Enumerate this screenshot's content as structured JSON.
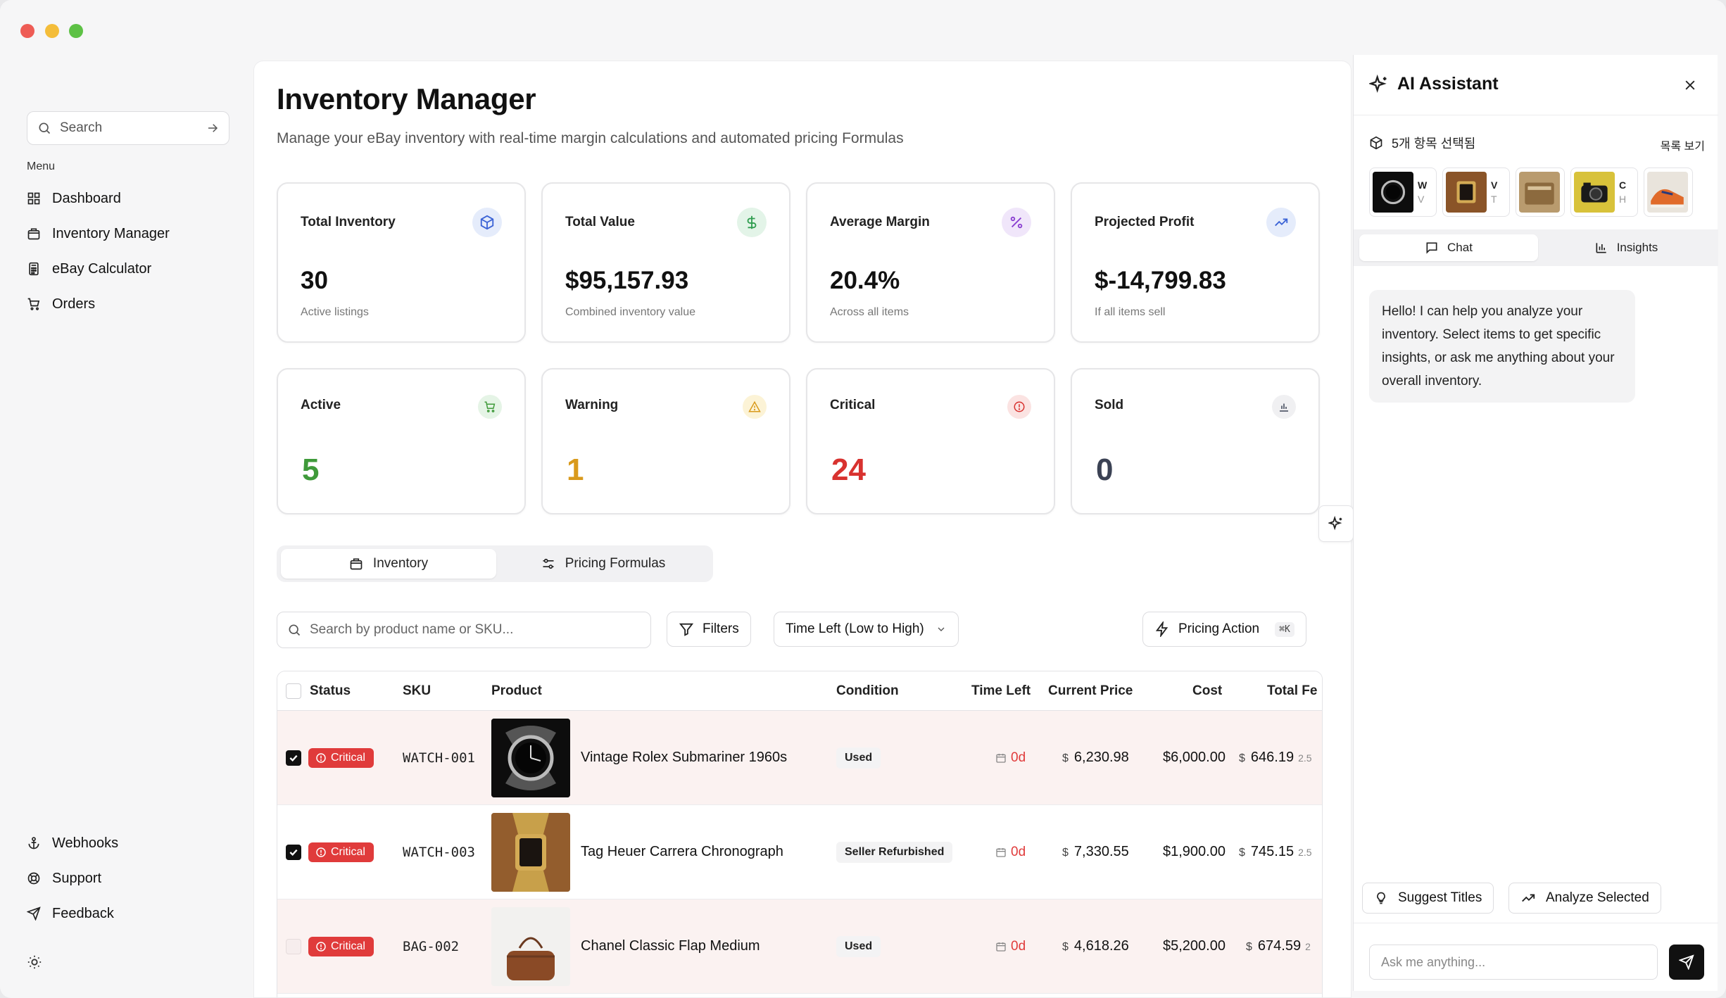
{
  "sidebar": {
    "search_placeholder": "Search",
    "menu_label": "Menu",
    "items": [
      {
        "label": "Dashboard",
        "icon": "dashboard-icon"
      },
      {
        "label": "Inventory Manager",
        "icon": "inventory-icon"
      },
      {
        "label": "eBay Calculator",
        "icon": "calculator-icon"
      },
      {
        "label": "Orders",
        "icon": "cart-icon"
      }
    ],
    "bottom_items": [
      {
        "label": "Webhooks",
        "icon": "anchor-icon"
      },
      {
        "label": "Support",
        "icon": "lifebuoy-icon"
      },
      {
        "label": "Feedback",
        "icon": "send-icon"
      }
    ]
  },
  "header": {
    "title": "Inventory Manager",
    "subtitle": "Manage your eBay inventory with real-time margin calculations and automated pricing Formulas"
  },
  "stats": [
    {
      "label": "Total Inventory",
      "value": "30",
      "note": "Active listings",
      "icon": "box-icon",
      "color": "#3b63d6",
      "bg": "#e5ecfb"
    },
    {
      "label": "Total Value",
      "value": "$95,157.93",
      "note": "Combined inventory value",
      "icon": "dollar-icon",
      "color": "#2f9d4f",
      "bg": "#e3f4e8"
    },
    {
      "label": "Average Margin",
      "value": "20.4%",
      "note": "Across all items",
      "icon": "percent-icon",
      "color": "#8a3fd1",
      "bg": "#f0e6fa"
    },
    {
      "label": "Projected Profit",
      "value": "$-14,799.83",
      "note": "If all items sell",
      "icon": "trending-up-icon",
      "color": "#3b63d6",
      "bg": "#e5ecfb"
    }
  ],
  "status_cards": [
    {
      "label": "Active",
      "value": "5",
      "icon": "cart-icon",
      "color": "#3f9a3a",
      "bg": "#e5f4e6"
    },
    {
      "label": "Warning",
      "value": "1",
      "icon": "warning-icon",
      "color": "#d99a1c",
      "bg": "#fcf3d6"
    },
    {
      "label": "Critical",
      "value": "24",
      "icon": "alert-circle-icon",
      "color": "#d8322f",
      "bg": "#fbe3e2"
    },
    {
      "label": "Sold",
      "value": "0",
      "icon": "bar-chart-icon",
      "color": "#3b4254",
      "bg": "#f0f0f2"
    }
  ],
  "tabs": [
    {
      "label": "Inventory",
      "icon": "inventory-icon",
      "active": true
    },
    {
      "label": "Pricing Formulas",
      "icon": "sliders-icon",
      "active": false
    }
  ],
  "toolbar": {
    "search_placeholder": "Search by product name or SKU...",
    "filters_label": "Filters",
    "sort_label": "Time Left (Low to High)",
    "pricing_action_label": "Pricing Action",
    "pricing_action_shortcut": "⌘K"
  },
  "table": {
    "columns": [
      "Status",
      "SKU",
      "Product",
      "Condition",
      "Time Left",
      "Current Price",
      "Cost",
      "Total Fe"
    ],
    "rows": [
      {
        "checked": true,
        "status": "Critical",
        "sku": "WATCH-001",
        "product": "Vintage Rolex Submariner 1960s",
        "condition": "Used",
        "time_left": "0d",
        "current_price": "6,230.98",
        "cost": "$6,000.00",
        "total_fees": "646.19",
        "fee_sub": "2.5",
        "thumb": "watch"
      },
      {
        "checked": true,
        "status": "Critical",
        "sku": "WATCH-003",
        "product": "Tag Heuer Carrera Chronograph",
        "condition": "Seller Refurbished",
        "time_left": "0d",
        "current_price": "7,330.55",
        "cost": "$1,900.00",
        "total_fees": "745.15",
        "fee_sub": "2.5",
        "thumb": "gold-watch"
      },
      {
        "checked": false,
        "status": "Critical",
        "sku": "BAG-002",
        "product": "Chanel Classic Flap Medium",
        "condition": "Used",
        "time_left": "0d",
        "current_price": "4,618.26",
        "cost": "$5,200.00",
        "total_fees": "674.59",
        "fee_sub": "2",
        "thumb": "bag"
      }
    ],
    "currency_symbol": "$"
  },
  "ai": {
    "title": "AI Assistant",
    "selected_text": "5개 항목 선택됨",
    "view_list": "목록 보기",
    "selected_items": [
      {
        "line1": "W",
        "line2": "V",
        "img": "watch"
      },
      {
        "line1": "V",
        "line2": "T",
        "img": "gold-watch"
      },
      {
        "line1": "",
        "line2": "",
        "img": "bag"
      },
      {
        "line1": "C",
        "line2": "H",
        "img": "camera"
      },
      {
        "line1": "",
        "line2": "",
        "img": "shoe"
      }
    ],
    "tabs": [
      {
        "label": "Chat",
        "icon": "chat-icon",
        "active": true
      },
      {
        "label": "Insights",
        "icon": "bar-chart-icon",
        "active": false
      }
    ],
    "greeting": "Hello! I can help you analyze your inventory. Select items to get specific insights, or ask me anything about your overall inventory.",
    "suggest_titles": "Suggest Titles",
    "analyze_selected": "Analyze Selected",
    "input_placeholder": "Ask me anything..."
  }
}
